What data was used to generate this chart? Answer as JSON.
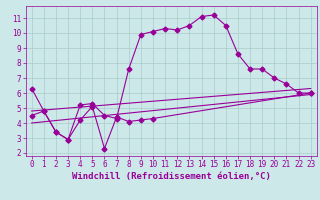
{
  "xlabel": "Windchill (Refroidissement éolien,°C)",
  "bg_color": "#cce8e8",
  "line_color": "#990099",
  "grid_color": "#aacccc",
  "xlim": [
    -0.5,
    23.5
  ],
  "ylim": [
    1.8,
    11.8
  ],
  "yticks": [
    2,
    3,
    4,
    5,
    6,
    7,
    8,
    9,
    10,
    11
  ],
  "xticks": [
    0,
    1,
    2,
    3,
    4,
    5,
    6,
    7,
    8,
    9,
    10,
    11,
    12,
    13,
    14,
    15,
    16,
    17,
    18,
    19,
    20,
    21,
    22,
    23
  ],
  "series1_x": [
    0,
    1,
    2,
    3,
    4,
    5,
    6,
    7,
    8,
    9,
    10,
    11,
    12,
    13,
    14,
    15,
    16,
    17,
    18,
    19,
    20,
    21,
    22,
    23
  ],
  "series1_y": [
    6.3,
    4.8,
    3.4,
    2.9,
    5.2,
    5.3,
    4.5,
    4.3,
    7.6,
    9.9,
    10.1,
    10.3,
    10.2,
    10.5,
    11.1,
    11.2,
    10.5,
    8.6,
    7.6,
    7.6,
    7.0,
    6.6,
    6.0,
    6.0
  ],
  "series2_x": [
    0,
    1,
    2,
    3,
    4,
    5,
    6,
    7,
    8,
    9,
    10,
    23
  ],
  "series2_y": [
    4.5,
    4.8,
    3.4,
    2.9,
    4.2,
    5.1,
    2.3,
    4.4,
    4.1,
    4.2,
    4.3,
    6.0
  ],
  "series3_x": [
    0,
    23
  ],
  "series3_y": [
    4.0,
    5.9
  ],
  "series4_x": [
    0,
    23
  ],
  "series4_y": [
    4.8,
    6.3
  ],
  "marker": "D",
  "markersize": 2.5,
  "linewidth": 0.8,
  "xlabel_fontsize": 6.5,
  "tick_fontsize": 5.5
}
